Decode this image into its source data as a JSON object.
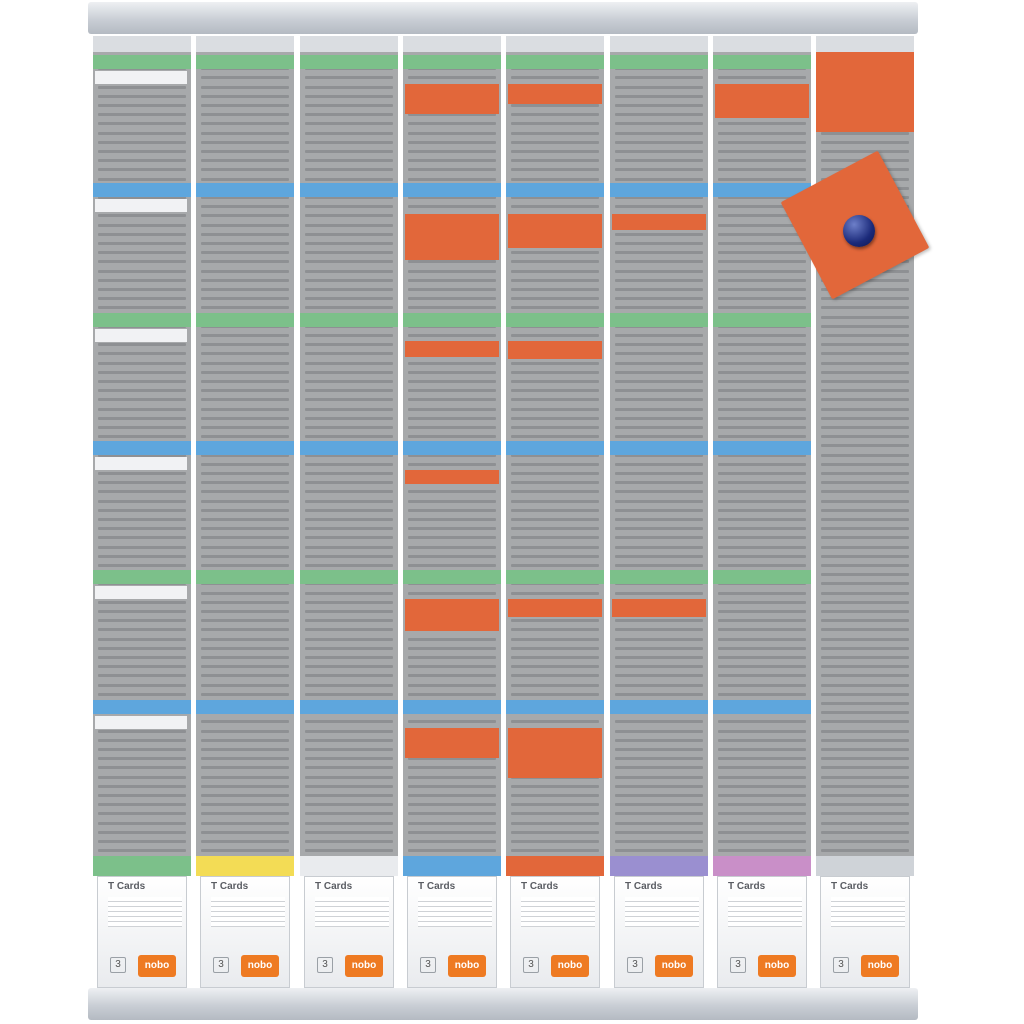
{
  "scene": {
    "colors": {
      "frame": "#c9ced5",
      "column": "#a7a9ab",
      "slot": "#8e9093",
      "green": "#7cc08a",
      "blue": "#5ea6dd",
      "orange": "#e2673a",
      "white_card": "#f1f2f4"
    },
    "columns": [
      {
        "box_label": "T Cards",
        "box_number": "3",
        "logo": "nobo",
        "box_color": "#7cc08a"
      },
      {
        "box_label": "T Cards",
        "box_number": "3",
        "logo": "nobo",
        "box_color": "#f3dc55"
      },
      {
        "box_label": "T Cards",
        "box_number": "3",
        "logo": "nobo",
        "box_color": "#e9ebee"
      },
      {
        "box_label": "T Cards",
        "box_number": "3",
        "logo": "nobo",
        "box_color": "#5ea6dd"
      },
      {
        "box_label": "T Cards",
        "box_number": "3",
        "logo": "nobo",
        "box_color": "#e2673a"
      },
      {
        "box_label": "T Cards",
        "box_number": "3",
        "logo": "nobo",
        "box_color": "#9a8fd0"
      },
      {
        "box_label": "T Cards",
        "box_number": "3",
        "logo": "nobo",
        "box_color": "#c98fc8"
      },
      {
        "box_label": "T Cards",
        "box_number": "3",
        "logo": "nobo",
        "box_color": "#cfd3d8"
      }
    ],
    "divider_colors": [
      "green",
      "blue",
      "green",
      "blue",
      "green",
      "blue"
    ],
    "magnet": "pin-magnet-icon"
  }
}
